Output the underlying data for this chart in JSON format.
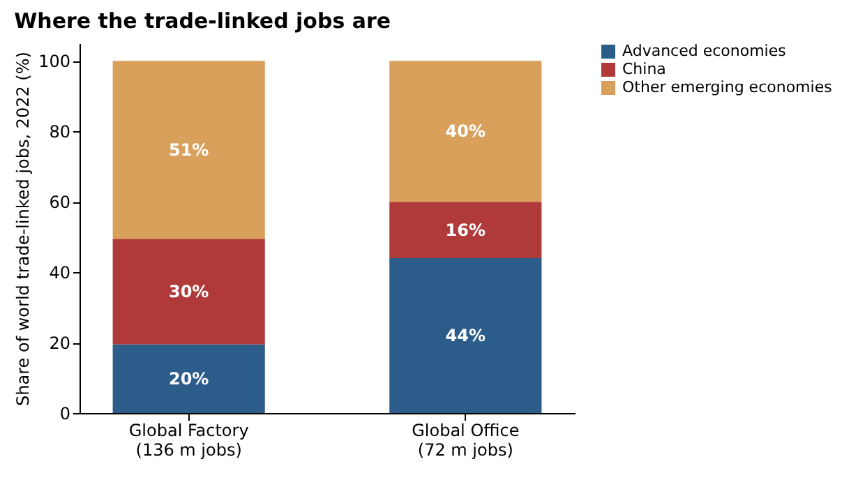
{
  "chart_data": {
    "type": "bar",
    "title": "Where the trade-linked jobs are",
    "ylabel": "Share of world trade-linked jobs, 2022 (%)",
    "categories": [
      "Global Factory\n(136 m jobs)",
      "Global Office\n(72 m jobs)"
    ],
    "series": [
      {
        "name": "Advanced economies",
        "color": "#2b5c8a",
        "values": [
          19.5,
          44
        ],
        "value_labels": [
          "20%",
          "44%"
        ]
      },
      {
        "name": "China",
        "color": "#b03a3a",
        "values": [
          30,
          16
        ],
        "value_labels": [
          "30%",
          "16%"
        ]
      },
      {
        "name": "Other emerging economies",
        "color": "#d9a05b",
        "values": [
          50.5,
          40
        ],
        "value_labels": [
          "51%",
          "40%"
        ]
      }
    ],
    "stacked": true,
    "ylim": [
      0,
      105
    ],
    "yticks": [
      0,
      20,
      40,
      60,
      80,
      100
    ],
    "grid": false,
    "legend": "right"
  }
}
